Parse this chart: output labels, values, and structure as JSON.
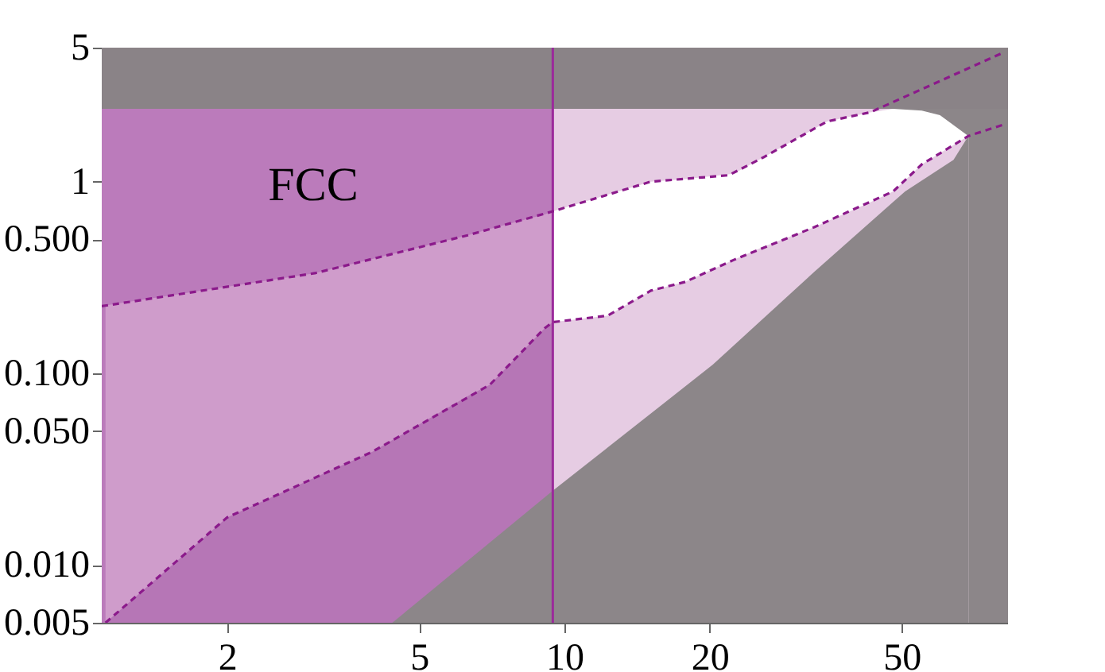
{
  "chart_data": {
    "type": "area",
    "log": "xy",
    "xlim": [
      1.1,
      83
    ],
    "ylim": [
      0.005,
      5
    ],
    "xticks": [
      2,
      5,
      10,
      20,
      50
    ],
    "yticks": [
      {
        "value": 0.005,
        "label": "0.005"
      },
      {
        "value": 0.01,
        "label": "0.010"
      },
      {
        "value": 0.05,
        "label": "0.050"
      },
      {
        "value": 0.1,
        "label": "0.100"
      },
      {
        "value": 0.5,
        "label": "0.500"
      },
      1,
      5
    ],
    "bands": [
      {
        "axis": "y",
        "from": 2.4,
        "to": 5,
        "color": "#8a8387"
      }
    ],
    "ref_lines": [
      {
        "axis": "x",
        "value": 9.46,
        "color": "#9b2a9b"
      }
    ],
    "annotations": [
      "FCC"
    ],
    "series": [
      {
        "color": "#bb7bbb",
        "x": [
          1.1,
          9.46
        ],
        "values": [
          2.4,
          2.4
        ]
      },
      {
        "color": "#cf9ccb",
        "x": [
          1.12,
          2,
          3.04,
          4,
          6.3,
          7,
          9.1,
          9.46
        ],
        "values": [
          0.226,
          0.283,
          0.333,
          0.395,
          0.525,
          0.566,
          0.675,
          0.7
        ]
      },
      {
        "color": "#b676b6",
        "x": [
          1.12,
          2,
          3.04,
          4,
          6.3,
          7,
          9.1,
          9.46
        ],
        "values": [
          0.005,
          0.0177,
          0.0286,
          0.039,
          0.076,
          0.087,
          0.172,
          0.185
        ]
      },
      {
        "color": "#e6cce3",
        "x": [
          9.46,
          48
        ],
        "values": [
          2.4,
          2.4
        ]
      },
      {
        "color": "#8c8689",
        "x": [
          48,
          83
        ],
        "values": [
          2.4,
          2.4
        ]
      },
      {
        "color": "#ffffff",
        "x": [
          9.46,
          12.3,
          15.1,
          17.8,
          22.4,
          26,
          33,
          35,
          43,
          48,
          55,
          60,
          68.7
        ],
        "values": [
          0.7,
          0.855,
          1.0,
          1.03,
          1.1,
          1.35,
          1.89,
          2.06,
          2.3,
          2.4,
          2.35,
          2.22,
          1.73
        ]
      },
      {
        "color": "#e6cce3",
        "x": [
          9.46,
          12.3,
          15.1,
          17.8,
          22.4,
          26,
          33,
          35,
          43,
          48,
          55,
          60,
          68.7
        ],
        "values": [
          0.185,
          0.2,
          0.27,
          0.3,
          0.39,
          0.46,
          0.58,
          0.62,
          0.78,
          0.89,
          1.23,
          1.41,
          1.73
        ]
      },
      {
        "color": "#8c8689",
        "x": [
          4.4,
          9.46,
          20.3,
          33,
          50.8,
          64,
          68.7
        ],
        "values": [
          0.005,
          0.0244,
          0.111,
          0.34,
          0.89,
          1.3,
          1.73
        ]
      },
      {
        "type": "line",
        "color": "#8b1a8b",
        "line_style": "dashed",
        "marker": "none",
        "x": [
          1.1,
          3.04,
          6.3,
          9.46,
          15.1,
          21.9,
          26,
          35,
          43,
          81
        ],
        "values": [
          0.224,
          0.333,
          0.525,
          0.7,
          1.0,
          1.08,
          1.35,
          2.06,
          2.3,
          4.7
        ]
      },
      {
        "type": "line",
        "color": "#8b1a8b",
        "line_style": "dashed",
        "marker": "none",
        "x": [
          1.12,
          2,
          4,
          7,
          9.1,
          9.46,
          12.3,
          15.1,
          17.8,
          22.4,
          33,
          48,
          55,
          68.7,
          81
        ],
        "values": [
          0.005,
          0.0177,
          0.039,
          0.087,
          0.172,
          0.185,
          0.2,
          0.27,
          0.3,
          0.39,
          0.58,
          0.89,
          1.23,
          1.73,
          1.98
        ]
      }
    ]
  }
}
